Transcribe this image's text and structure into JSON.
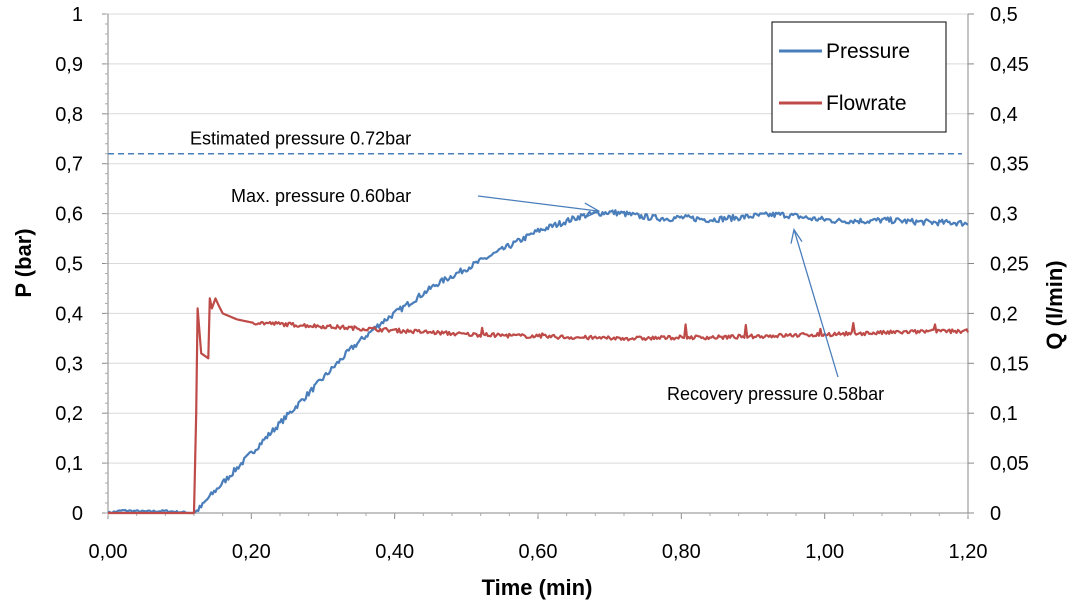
{
  "chart_data": {
    "type": "line",
    "title": "",
    "xlabel": "Time (min)",
    "ylabel": "P (bar)",
    "y2label": "Q (l/min)",
    "xlim": [
      0,
      1.2
    ],
    "ylim": [
      0,
      1
    ],
    "y2lim": [
      0,
      0.5
    ],
    "grid": true,
    "legend_position": "top-right",
    "x_ticks": [
      "0,00",
      "0,20",
      "0,40",
      "0,60",
      "0,80",
      "1,00",
      "1,20"
    ],
    "y_ticks": [
      "0",
      "0,1",
      "0,2",
      "0,3",
      "0,4",
      "0,5",
      "0,6",
      "0,7",
      "0,8",
      "0,9",
      "1"
    ],
    "y2_ticks": [
      "0",
      "0,05",
      "0,1",
      "0,15",
      "0,2",
      "0,25",
      "0,3",
      "0,35",
      "0,4",
      "0,45",
      "0,5"
    ],
    "series": [
      {
        "name": "Pressure",
        "axis": "left",
        "color": "#4a7ebb",
        "x": [
          0,
          0.02,
          0.05,
          0.08,
          0.1,
          0.12,
          0.13,
          0.14,
          0.16,
          0.18,
          0.2,
          0.22,
          0.24,
          0.26,
          0.28,
          0.3,
          0.32,
          0.34,
          0.36,
          0.38,
          0.4,
          0.42,
          0.44,
          0.46,
          0.48,
          0.5,
          0.52,
          0.54,
          0.56,
          0.58,
          0.6,
          0.62,
          0.64,
          0.66,
          0.68,
          0.7,
          0.72,
          0.74,
          0.76,
          0.78,
          0.8,
          0.82,
          0.84,
          0.86,
          0.88,
          0.9,
          0.92,
          0.94,
          0.96,
          0.98,
          1.0,
          1.02,
          1.04,
          1.06,
          1.08,
          1.1,
          1.12,
          1.14,
          1.16,
          1.18,
          1.2
        ],
        "y": [
          0.0,
          0.005,
          0.003,
          0.004,
          0.002,
          0.0,
          0.012,
          0.03,
          0.06,
          0.09,
          0.12,
          0.15,
          0.18,
          0.21,
          0.24,
          0.27,
          0.3,
          0.33,
          0.355,
          0.38,
          0.4,
          0.42,
          0.44,
          0.46,
          0.475,
          0.49,
          0.505,
          0.52,
          0.535,
          0.55,
          0.565,
          0.575,
          0.585,
          0.595,
          0.6,
          0.603,
          0.6,
          0.595,
          0.592,
          0.59,
          0.592,
          0.59,
          0.588,
          0.59,
          0.592,
          0.595,
          0.597,
          0.598,
          0.595,
          0.59,
          0.588,
          0.585,
          0.586,
          0.585,
          0.587,
          0.586,
          0.584,
          0.583,
          0.582,
          0.582,
          0.58
        ]
      },
      {
        "name": "Flowrate",
        "axis": "right",
        "color": "#be4b48",
        "x": [
          0,
          0.05,
          0.1,
          0.12,
          0.123,
          0.125,
          0.13,
          0.14,
          0.142,
          0.145,
          0.15,
          0.155,
          0.16,
          0.18,
          0.2,
          0.25,
          0.3,
          0.35,
          0.4,
          0.45,
          0.5,
          0.55,
          0.6,
          0.65,
          0.7,
          0.75,
          0.8,
          0.85,
          0.9,
          0.95,
          1.0,
          1.05,
          1.1,
          1.15,
          1.2
        ],
        "y": [
          0.0,
          0.0,
          0.0,
          0.0,
          0.1,
          0.205,
          0.16,
          0.155,
          0.215,
          0.205,
          0.215,
          0.207,
          0.2,
          0.194,
          0.191,
          0.189,
          0.187,
          0.185,
          0.183,
          0.181,
          0.179,
          0.178,
          0.177,
          0.176,
          0.175,
          0.175,
          0.176,
          0.176,
          0.177,
          0.178,
          0.179,
          0.18,
          0.181,
          0.182,
          0.182
        ]
      }
    ],
    "annotations": [
      {
        "name": "estimated",
        "text": "Estimated pressure 0.72bar",
        "value": 0.72,
        "kind": "hline",
        "color": "#4a7ebb"
      },
      {
        "name": "max",
        "text": "Max. pressure 0.60bar",
        "point": [
          0.71,
          0.605
        ],
        "kind": "arrow"
      },
      {
        "name": "recovery",
        "text": "Recovery pressure 0.58bar",
        "point": [
          0.96,
          0.58
        ],
        "kind": "arrow"
      }
    ]
  }
}
